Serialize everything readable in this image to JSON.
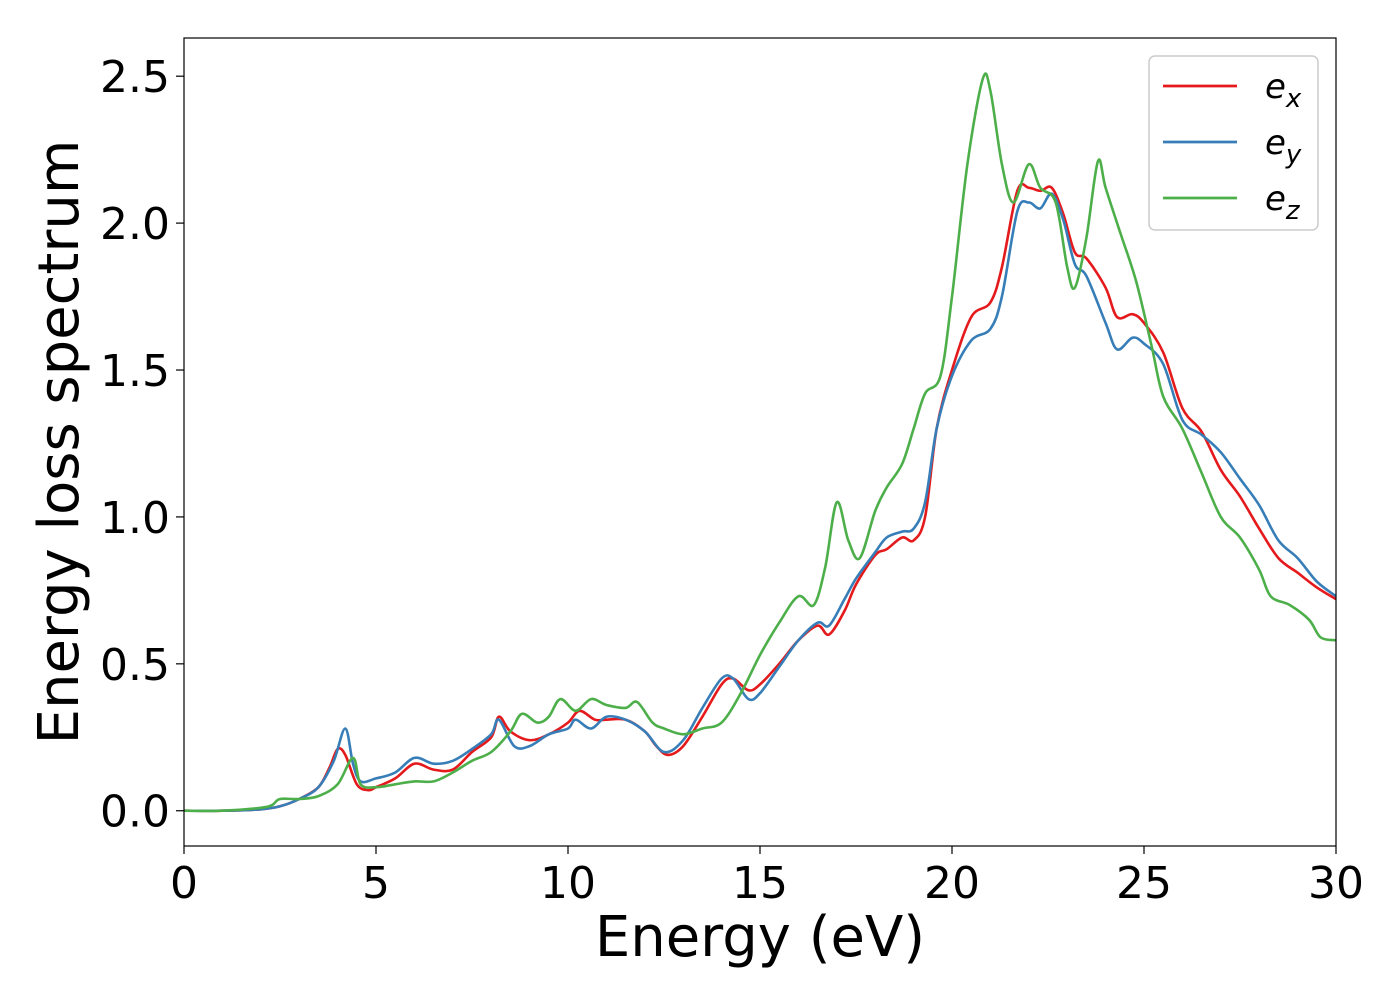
{
  "chart_data": {
    "type": "line",
    "title": "",
    "xlabel": "Energy (eV)",
    "ylabel": "Energy loss spectrum",
    "xlim": [
      0,
      30
    ],
    "ylim": [
      -0.12,
      2.63
    ],
    "xticks": [
      0,
      5,
      10,
      15,
      20,
      25,
      30
    ],
    "xtick_labels": [
      "0",
      "5",
      "10",
      "15",
      "20",
      "25",
      "30"
    ],
    "yticks": [
      0.0,
      0.5,
      1.0,
      1.5,
      2.0,
      2.5
    ],
    "ytick_labels": [
      "0.0",
      "0.5",
      "1.0",
      "1.5",
      "2.0",
      "2.5"
    ],
    "grid": false,
    "legend_position": "top-right",
    "series": [
      {
        "name": "e_x",
        "color": "#e41a1c",
        "points": [
          [
            0,
            0
          ],
          [
            1,
            0.0
          ],
          [
            2,
            0.005
          ],
          [
            2.5,
            0.015
          ],
          [
            3,
            0.04
          ],
          [
            3.5,
            0.08
          ],
          [
            3.8,
            0.15
          ],
          [
            4.0,
            0.21
          ],
          [
            4.2,
            0.19
          ],
          [
            4.5,
            0.09
          ],
          [
            4.8,
            0.07
          ],
          [
            5.0,
            0.08
          ],
          [
            5.5,
            0.11
          ],
          [
            6.0,
            0.16
          ],
          [
            6.5,
            0.14
          ],
          [
            7.0,
            0.14
          ],
          [
            7.5,
            0.2
          ],
          [
            8.0,
            0.25
          ],
          [
            8.2,
            0.32
          ],
          [
            8.5,
            0.27
          ],
          [
            9.0,
            0.24
          ],
          [
            9.5,
            0.26
          ],
          [
            10.0,
            0.3
          ],
          [
            10.3,
            0.34
          ],
          [
            10.7,
            0.31
          ],
          [
            11.0,
            0.31
          ],
          [
            11.5,
            0.31
          ],
          [
            12.0,
            0.27
          ],
          [
            12.3,
            0.22
          ],
          [
            12.6,
            0.19
          ],
          [
            13.0,
            0.22
          ],
          [
            13.5,
            0.32
          ],
          [
            14.0,
            0.43
          ],
          [
            14.3,
            0.45
          ],
          [
            14.7,
            0.41
          ],
          [
            15.0,
            0.43
          ],
          [
            15.5,
            0.5
          ],
          [
            16.0,
            0.58
          ],
          [
            16.5,
            0.63
          ],
          [
            16.8,
            0.6
          ],
          [
            17.2,
            0.68
          ],
          [
            17.5,
            0.77
          ],
          [
            18.0,
            0.87
          ],
          [
            18.3,
            0.89
          ],
          [
            18.7,
            0.93
          ],
          [
            19.0,
            0.92
          ],
          [
            19.3,
            1.0
          ],
          [
            19.6,
            1.3
          ],
          [
            20.0,
            1.5
          ],
          [
            20.5,
            1.68
          ],
          [
            21.0,
            1.73
          ],
          [
            21.3,
            1.85
          ],
          [
            21.7,
            2.11
          ],
          [
            22.0,
            2.12
          ],
          [
            22.3,
            2.11
          ],
          [
            22.6,
            2.12
          ],
          [
            22.9,
            2.03
          ],
          [
            23.2,
            1.9
          ],
          [
            23.5,
            1.88
          ],
          [
            24.0,
            1.78
          ],
          [
            24.3,
            1.68
          ],
          [
            24.7,
            1.69
          ],
          [
            25.0,
            1.66
          ],
          [
            25.5,
            1.56
          ],
          [
            26.0,
            1.37
          ],
          [
            26.5,
            1.29
          ],
          [
            27.0,
            1.16
          ],
          [
            27.5,
            1.07
          ],
          [
            28.0,
            0.96
          ],
          [
            28.5,
            0.86
          ],
          [
            29.0,
            0.81
          ],
          [
            29.5,
            0.76
          ],
          [
            30,
            0.72
          ]
        ]
      },
      {
        "name": "e_y",
        "color": "#377eb8",
        "points": [
          [
            0,
            0
          ],
          [
            1,
            0.0
          ],
          [
            2,
            0.005
          ],
          [
            2.5,
            0.015
          ],
          [
            3,
            0.04
          ],
          [
            3.5,
            0.08
          ],
          [
            3.9,
            0.17
          ],
          [
            4.2,
            0.28
          ],
          [
            4.4,
            0.16
          ],
          [
            4.6,
            0.1
          ],
          [
            5.0,
            0.11
          ],
          [
            5.5,
            0.13
          ],
          [
            6.0,
            0.18
          ],
          [
            6.5,
            0.16
          ],
          [
            7.0,
            0.17
          ],
          [
            7.5,
            0.21
          ],
          [
            8.0,
            0.26
          ],
          [
            8.2,
            0.31
          ],
          [
            8.6,
            0.22
          ],
          [
            9.0,
            0.22
          ],
          [
            9.5,
            0.26
          ],
          [
            10.0,
            0.28
          ],
          [
            10.2,
            0.31
          ],
          [
            10.6,
            0.28
          ],
          [
            11.0,
            0.32
          ],
          [
            11.5,
            0.31
          ],
          [
            12.0,
            0.27
          ],
          [
            12.5,
            0.2
          ],
          [
            13.0,
            0.24
          ],
          [
            13.5,
            0.35
          ],
          [
            14.0,
            0.45
          ],
          [
            14.3,
            0.45
          ],
          [
            14.7,
            0.38
          ],
          [
            15.0,
            0.4
          ],
          [
            15.5,
            0.49
          ],
          [
            16.0,
            0.58
          ],
          [
            16.5,
            0.64
          ],
          [
            16.8,
            0.63
          ],
          [
            17.2,
            0.72
          ],
          [
            17.5,
            0.79
          ],
          [
            18.0,
            0.88
          ],
          [
            18.3,
            0.93
          ],
          [
            18.7,
            0.95
          ],
          [
            19.0,
            0.96
          ],
          [
            19.3,
            1.05
          ],
          [
            19.6,
            1.3
          ],
          [
            20.0,
            1.48
          ],
          [
            20.5,
            1.6
          ],
          [
            21.0,
            1.64
          ],
          [
            21.3,
            1.75
          ],
          [
            21.7,
            2.04
          ],
          [
            22.0,
            2.07
          ],
          [
            22.3,
            2.05
          ],
          [
            22.6,
            2.1
          ],
          [
            22.9,
            2.01
          ],
          [
            23.2,
            1.86
          ],
          [
            23.5,
            1.82
          ],
          [
            24.0,
            1.66
          ],
          [
            24.3,
            1.57
          ],
          [
            24.7,
            1.61
          ],
          [
            25.0,
            1.59
          ],
          [
            25.5,
            1.52
          ],
          [
            26.0,
            1.33
          ],
          [
            26.5,
            1.28
          ],
          [
            27.0,
            1.22
          ],
          [
            27.5,
            1.13
          ],
          [
            28.0,
            1.04
          ],
          [
            28.5,
            0.92
          ],
          [
            29.0,
            0.86
          ],
          [
            29.5,
            0.78
          ],
          [
            30,
            0.73
          ]
        ]
      },
      {
        "name": "e_z",
        "color": "#4daf4a",
        "points": [
          [
            0,
            0
          ],
          [
            1,
            0.0
          ],
          [
            2,
            0.01
          ],
          [
            2.3,
            0.02
          ],
          [
            2.5,
            0.04
          ],
          [
            3,
            0.04
          ],
          [
            3.5,
            0.05
          ],
          [
            4.0,
            0.09
          ],
          [
            4.4,
            0.18
          ],
          [
            4.6,
            0.09
          ],
          [
            5.0,
            0.08
          ],
          [
            5.5,
            0.09
          ],
          [
            6.0,
            0.1
          ],
          [
            6.5,
            0.1
          ],
          [
            7.0,
            0.13
          ],
          [
            7.5,
            0.17
          ],
          [
            8.0,
            0.2
          ],
          [
            8.5,
            0.27
          ],
          [
            8.8,
            0.33
          ],
          [
            9.2,
            0.3
          ],
          [
            9.5,
            0.32
          ],
          [
            9.8,
            0.38
          ],
          [
            10.2,
            0.34
          ],
          [
            10.6,
            0.38
          ],
          [
            11.0,
            0.36
          ],
          [
            11.5,
            0.35
          ],
          [
            11.8,
            0.37
          ],
          [
            12.2,
            0.3
          ],
          [
            12.5,
            0.28
          ],
          [
            13.0,
            0.26
          ],
          [
            13.5,
            0.28
          ],
          [
            14.0,
            0.3
          ],
          [
            14.5,
            0.4
          ],
          [
            15.0,
            0.53
          ],
          [
            15.5,
            0.64
          ],
          [
            16.0,
            0.73
          ],
          [
            16.4,
            0.7
          ],
          [
            16.7,
            0.83
          ],
          [
            17.0,
            1.05
          ],
          [
            17.3,
            0.92
          ],
          [
            17.6,
            0.86
          ],
          [
            18.0,
            1.02
          ],
          [
            18.3,
            1.1
          ],
          [
            18.7,
            1.18
          ],
          [
            19.0,
            1.3
          ],
          [
            19.3,
            1.42
          ],
          [
            19.7,
            1.48
          ],
          [
            20.0,
            1.75
          ],
          [
            20.4,
            2.2
          ],
          [
            20.8,
            2.49
          ],
          [
            21.0,
            2.45
          ],
          [
            21.3,
            2.2
          ],
          [
            21.6,
            2.07
          ],
          [
            22.0,
            2.2
          ],
          [
            22.3,
            2.12
          ],
          [
            22.7,
            2.07
          ],
          [
            23.0,
            1.85
          ],
          [
            23.2,
            1.78
          ],
          [
            23.5,
            1.95
          ],
          [
            23.8,
            2.21
          ],
          [
            24.0,
            2.12
          ],
          [
            24.4,
            1.96
          ],
          [
            24.8,
            1.8
          ],
          [
            25.2,
            1.58
          ],
          [
            25.5,
            1.41
          ],
          [
            26.0,
            1.3
          ],
          [
            26.5,
            1.15
          ],
          [
            27.0,
            1.0
          ],
          [
            27.5,
            0.93
          ],
          [
            28.0,
            0.82
          ],
          [
            28.3,
            0.73
          ],
          [
            28.8,
            0.7
          ],
          [
            29.3,
            0.65
          ],
          [
            29.6,
            0.59
          ],
          [
            30,
            0.58
          ]
        ]
      }
    ]
  },
  "legend": [
    {
      "base": "e",
      "sub": "x",
      "color": "#e41a1c"
    },
    {
      "base": "e",
      "sub": "y",
      "color": "#377eb8"
    },
    {
      "base": "e",
      "sub": "z",
      "color": "#4daf4a"
    }
  ]
}
